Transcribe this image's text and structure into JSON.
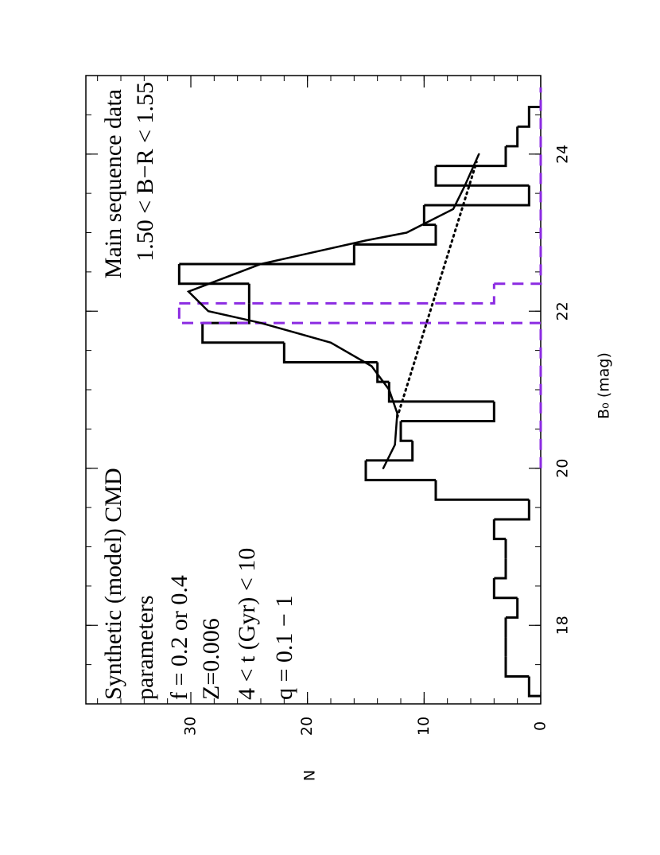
{
  "chart_data": {
    "type": "histogram",
    "x_label": "B₀ (mag)",
    "y_label": "N",
    "xlim": [
      17,
      25
    ],
    "ylim": [
      0,
      39
    ],
    "xticks": [
      18,
      20,
      22,
      24
    ],
    "yticks": [
      0,
      10,
      20,
      30
    ],
    "xminorticks": [
      17,
      17.5,
      18,
      18.5,
      19,
      19.5,
      20,
      20.5,
      21,
      21.5,
      22,
      22.5,
      23,
      23.5,
      24,
      24.5
    ],
    "yminorticks": [
      0,
      2,
      4,
      6,
      8,
      10,
      12,
      14,
      16,
      18,
      20,
      22,
      24,
      26,
      28,
      30,
      32,
      34,
      36,
      38
    ],
    "annotations_left": [
      "Synthetic (model) CMD",
      "parameters",
      "f = 0.2 or 0.4",
      "Z=0.006",
      "4 < t (Gyr) < 10",
      "q = 0.1 − 1"
    ],
    "annotations_right": [
      "Main sequence data",
      "1.50 < B−R < 1.55"
    ],
    "series": [
      {
        "type": "histogram",
        "color": "#000000",
        "linestyle": "solid",
        "bins": [
          17.1,
          17.35,
          17.6,
          17.85,
          18.1,
          18.35,
          18.6,
          18.85,
          19.1,
          19.35,
          19.6,
          19.85,
          20.1,
          20.35,
          20.6,
          20.85,
          21.1,
          21.35,
          21.6,
          21.85,
          22.1,
          22.35,
          22.6,
          22.85,
          23.1,
          23.35,
          23.6,
          23.85,
          24.1,
          24.35,
          24.6
        ],
        "values": [
          1,
          3,
          3,
          3,
          2,
          4,
          3,
          3,
          4,
          1,
          9,
          15,
          11,
          12,
          4,
          13,
          14,
          22,
          29,
          25,
          25,
          31,
          16,
          9,
          10,
          1,
          9,
          3,
          2,
          1
        ]
      },
      {
        "type": "histogram",
        "color": "#8b2be2",
        "linestyle": "dashed",
        "bins": [
          20.0,
          21.85,
          22.1,
          22.35,
          24.85
        ],
        "values": [
          0,
          31,
          4,
          0
        ]
      },
      {
        "type": "line",
        "color": "#000000",
        "linestyle": "solid",
        "x": [
          20.0,
          20.3,
          20.7,
          21.0,
          21.3,
          21.6,
          21.85,
          22.0,
          22.25,
          22.6,
          22.9,
          23.0,
          23.3,
          23.6,
          24.0
        ],
        "values": [
          13.5,
          12.5,
          12.3,
          13.0,
          14.5,
          18.0,
          24.0,
          28.5,
          30.2,
          24.0,
          15.0,
          11.5,
          7.5,
          6.5,
          5.3
        ]
      },
      {
        "type": "line",
        "color": "#000000",
        "linestyle": "dotted",
        "x": [
          20.65,
          23.9
        ],
        "values": [
          12.3,
          5.5
        ]
      }
    ]
  }
}
